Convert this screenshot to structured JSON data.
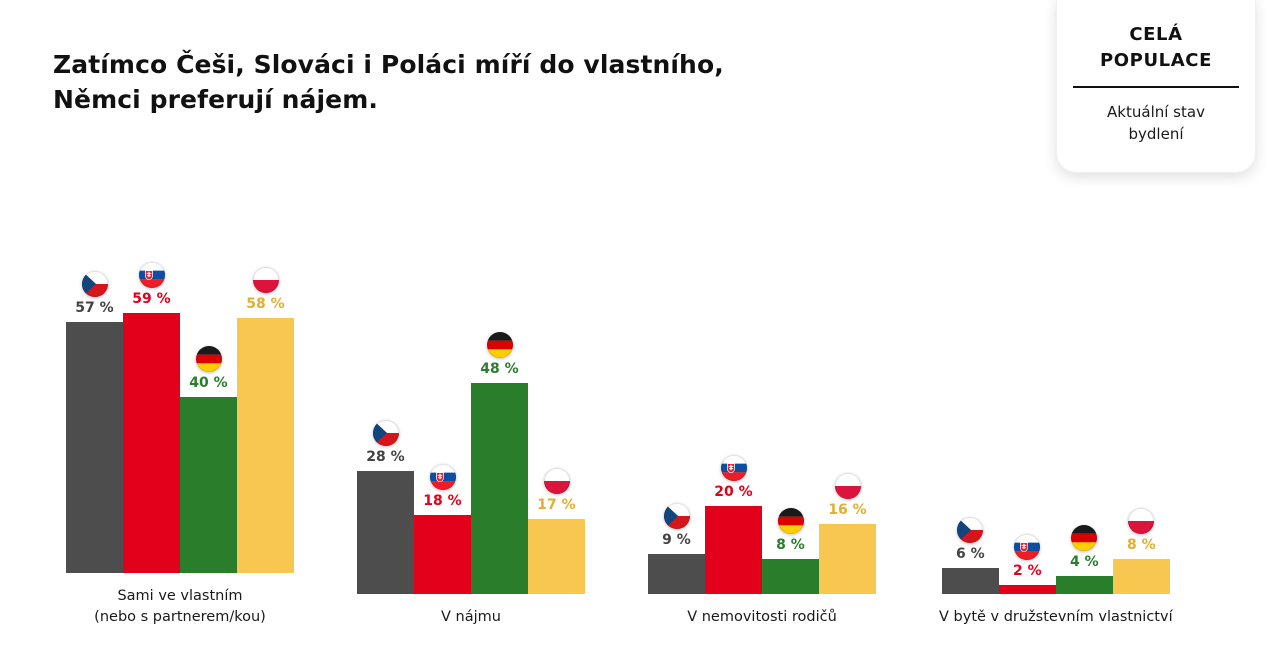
{
  "title": {
    "line1": "Zatímco Češi, Slováci i Poláci míří do vlastního,",
    "line2": "Němci preferují nájem."
  },
  "tab": {
    "title": "CELÁ POPULACE",
    "subtitle": "Aktuální stav bydlení"
  },
  "chart_data": {
    "type": "bar",
    "title": "Zatímco Češi, Slováci i Poláci míří do vlastního, Němci preferují nájem.",
    "categories": [
      "Sami ve vlastním\n(nebo s partnerem/kou)",
      "V nájmu",
      "V nemovitosti rodičů",
      "V bytě v družstevním vlastnictví"
    ],
    "series": [
      {
        "name": "czech-flag",
        "flag": "cz",
        "color": "#4d4d4d",
        "label_color": "#434343",
        "values": [
          57,
          28,
          9,
          6
        ]
      },
      {
        "name": "slovak-flag",
        "flag": "sk",
        "color": "#e2001a",
        "label_color": "#e2001a",
        "values": [
          59,
          18,
          20,
          2
        ]
      },
      {
        "name": "german-flag",
        "flag": "de",
        "color": "#2a7d2b",
        "label_color": "#2a7d2b",
        "values": [
          40,
          48,
          8,
          4
        ]
      },
      {
        "name": "polish-flag",
        "flag": "pl",
        "color": "#f8c74f",
        "label_color": "#e4ae2f",
        "values": [
          58,
          17,
          16,
          8
        ]
      }
    ],
    "value_suffix": " %",
    "ylim": [
      0,
      60
    ],
    "legend_position": "above-bars-as-flags",
    "grid": false
  }
}
